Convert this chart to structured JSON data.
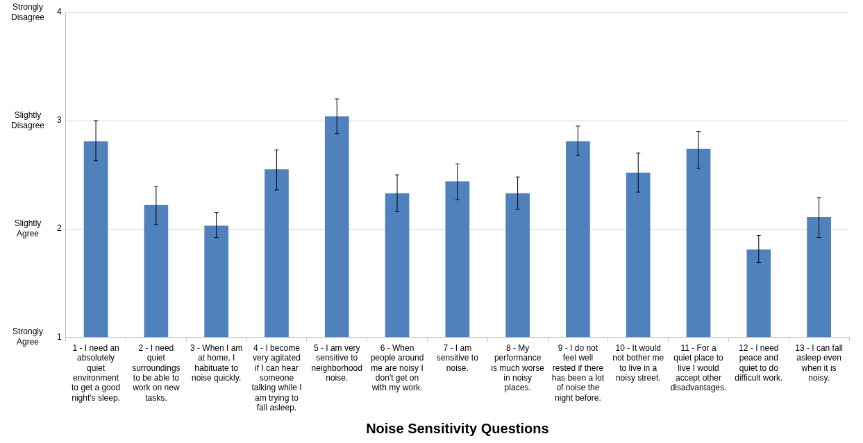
{
  "chart_data": {
    "type": "bar",
    "xlabel": "Noise Sensitivity Questions",
    "categories": [
      "1 - I need an absolutely quiet environment to get a good night's sleep.",
      "2 - I need quiet surroundings to be able to work on new tasks.",
      "3 - When I am at home, I habituate to noise quickly.",
      "4 - I become very agitated if I can hear someone talking while I am trying to fall asleep.",
      "5 - I am very sensitive to neighborhood noise.",
      "6 - When people around me are noisy I don't get on with my work.",
      "7 - I am sensitive to noise.",
      "8 - My performance is much worse in noisy places.",
      "9 - I do not feel well rested if there has been a lot of noise the night before.",
      "10 - It would not bother me to live in a noisy street.",
      "11 - For a quiet place to live I would accept other disadvantages.",
      "12 - I need peace and quiet to do difficult work.",
      "13 - I can fall asleep even when it is noisy."
    ],
    "values": [
      2.81,
      2.22,
      2.03,
      2.55,
      3.04,
      2.33,
      2.44,
      2.33,
      2.81,
      2.52,
      2.74,
      1.81,
      2.11
    ],
    "errors": [
      [
        2.63,
        3.0
      ],
      [
        2.04,
        2.39
      ],
      [
        1.92,
        2.15
      ],
      [
        2.36,
        2.73
      ],
      [
        2.88,
        3.2
      ],
      [
        2.16,
        2.5
      ],
      [
        2.27,
        2.6
      ],
      [
        2.18,
        2.48
      ],
      [
        2.68,
        2.95
      ],
      [
        2.34,
        2.7
      ],
      [
        2.56,
        2.9
      ],
      [
        1.69,
        1.94
      ],
      [
        1.92,
        2.29
      ]
    ],
    "color": "#4f81bd",
    "ylim": [
      1,
      4
    ],
    "yticks": [
      1,
      2,
      3,
      4
    ],
    "annotations": [
      "Strongly Agree",
      "Slightly Agree",
      "Slightly Disagree",
      "Strongly Disagree"
    ],
    "grid": "y",
    "legend": false
  }
}
